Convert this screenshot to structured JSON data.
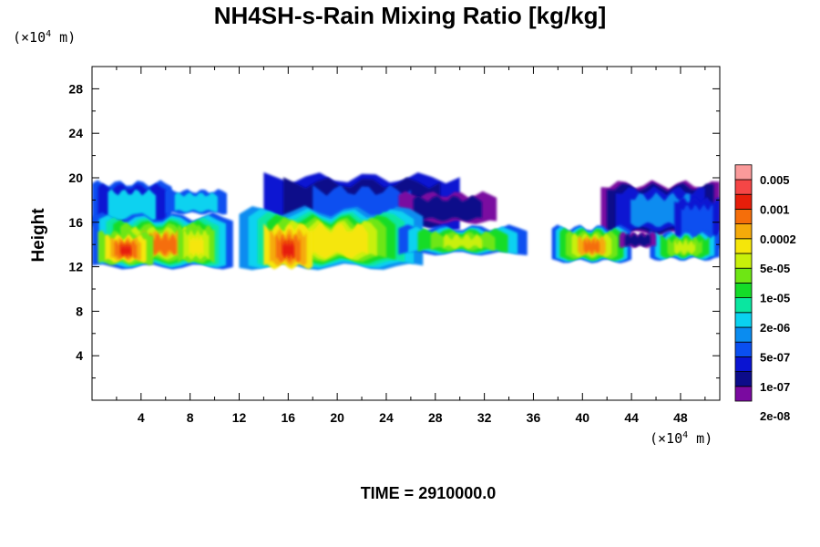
{
  "chart_data": {
    "type": "heatmap",
    "title": "NH4SH-s-Rain Mixing Ratio [kg/kg]",
    "ylabel": "Height",
    "xlabel": "",
    "x_unit": {
      "prefix": "(×10",
      "exp": "4",
      "suffix": " m)"
    },
    "y_unit": {
      "prefix": "(×10",
      "exp": "4",
      "suffix": " m)"
    },
    "xlim": [
      0,
      51.2
    ],
    "ylim": [
      0,
      30
    ],
    "x_ticks": [
      "4",
      "8",
      "12",
      "16",
      "20",
      "24",
      "28",
      "32",
      "36",
      "40",
      "44",
      "48"
    ],
    "y_ticks": [
      "4",
      "8",
      "12",
      "16",
      "20",
      "24",
      "28"
    ],
    "colorbar": {
      "labels": [
        "0.005",
        "0.001",
        "0.0002",
        "5e-05",
        "1e-05",
        "2e-06",
        "5e-07",
        "1e-07",
        "2e-08"
      ],
      "colors": [
        "#7a0aa0",
        "#0c0c8a",
        "#0a14d2",
        "#0a4ff0",
        "#0a8cf0",
        "#0ad2f0",
        "#0ae6a0",
        "#14dc28",
        "#6ee614",
        "#c8f00a",
        "#f5e60a",
        "#f5aa0a",
        "#f56e0a",
        "#e61e0a",
        "#f54646",
        "#fa9a9a"
      ]
    },
    "field_notes": "cloud band between ~12 and ~19.5 (x10^4 m) height; gap near x=36",
    "time_label": "TIME = 2910000.0"
  }
}
